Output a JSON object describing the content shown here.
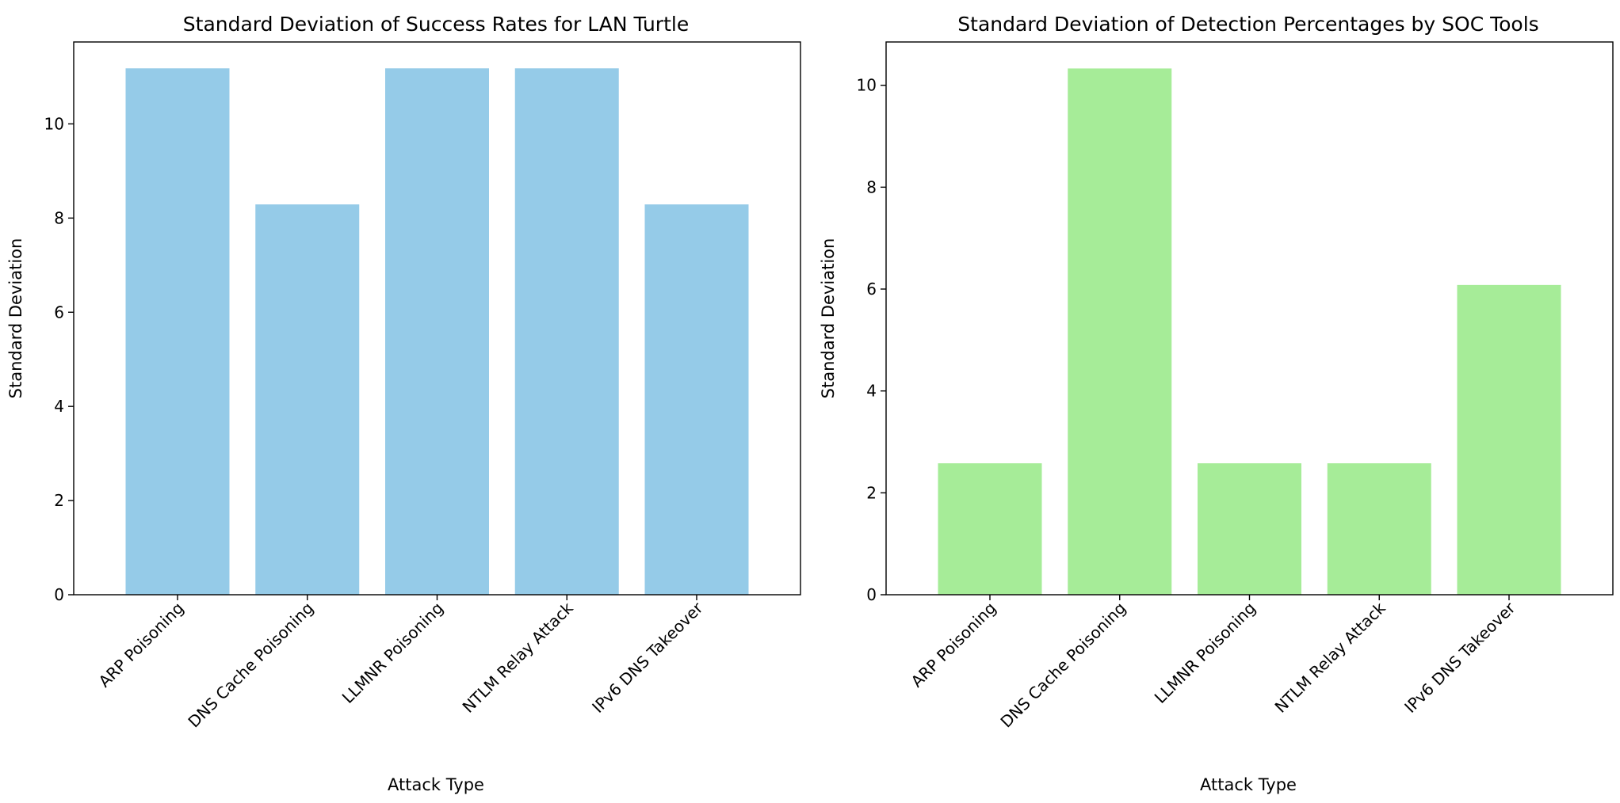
{
  "chart_data": [
    {
      "type": "bar",
      "title": "Standard Deviation of Success Rates for LAN Turtle",
      "xlabel": "Attack Type",
      "ylabel": "Standard Deviation",
      "categories": [
        "ARP Poisoning",
        "DNS Cache Poisoning",
        "LLMNR Poisoning",
        "NTLM Relay Attack",
        "IPv6 DNS Takeover"
      ],
      "values": [
        11.18,
        8.29,
        11.18,
        11.18,
        8.29
      ],
      "ylim": [
        0,
        11.74
      ],
      "yticks": [
        0,
        2,
        4,
        6,
        8,
        10
      ],
      "color": "#95cbe8",
      "grid": false,
      "legend": "none"
    },
    {
      "type": "bar",
      "title": "Standard Deviation of Detection Percentages by SOC Tools",
      "xlabel": "Attack Type",
      "ylabel": "Standard Deviation",
      "categories": [
        "ARP Poisoning",
        "DNS Cache Poisoning",
        "LLMNR Poisoning",
        "NTLM Relay Attack",
        "IPv6 DNS Takeover"
      ],
      "values": [
        2.58,
        10.33,
        2.58,
        2.58,
        6.08
      ],
      "ylim": [
        0,
        10.85
      ],
      "yticks": [
        0,
        2,
        4,
        6,
        8,
        10
      ],
      "color": "#a6ec98",
      "grid": false,
      "legend": "none"
    }
  ]
}
